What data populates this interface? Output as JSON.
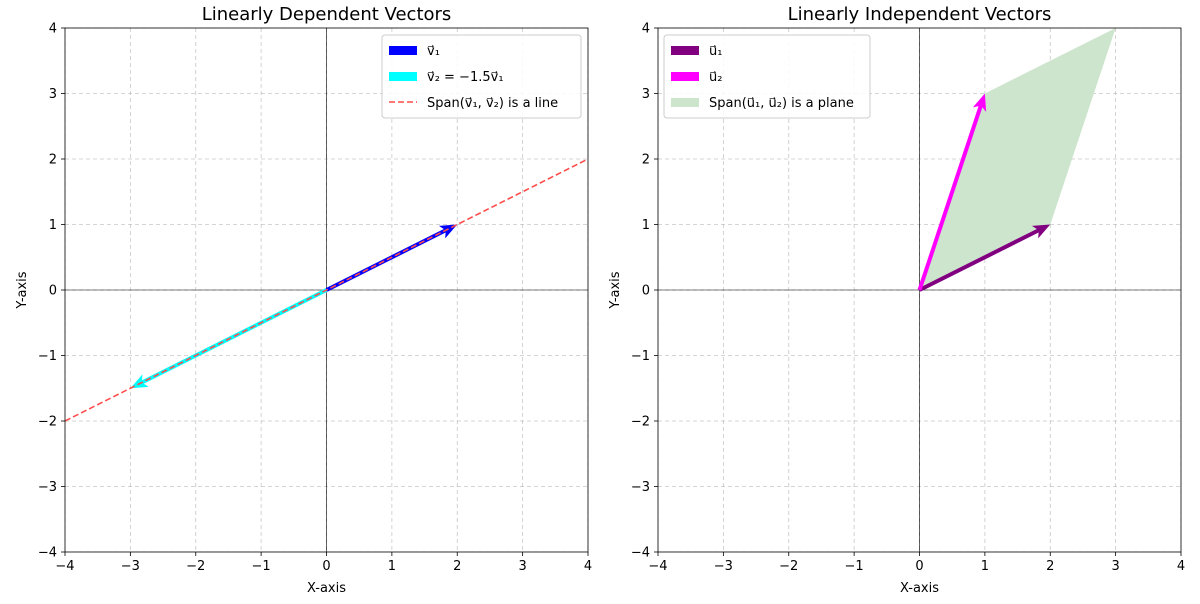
{
  "chart_data": [
    {
      "type": "vector",
      "title": "Linearly Dependent Vectors",
      "xlabel": "X-axis",
      "ylabel": "Y-axis",
      "xlim": [
        -4,
        4
      ],
      "ylim": [
        -4,
        4
      ],
      "ticks": [
        -4,
        -3,
        -2,
        -1,
        0,
        1,
        2,
        3,
        4
      ],
      "tick_labels": [
        "−4",
        "−3",
        "−2",
        "−1",
        "0",
        "1",
        "2",
        "3",
        "4"
      ],
      "grid": true,
      "legend_position": "top-right",
      "vectors": [
        {
          "name": "v⃗₁",
          "x": 2,
          "y": 1,
          "color": "#0000ff"
        },
        {
          "name": "v⃗₂ = −1.5v⃗₁",
          "x": -3,
          "y": -1.5,
          "color": "#00ffff"
        }
      ],
      "lines": [
        {
          "name": "Span(v⃗₁, v⃗₂) is a line",
          "x": [
            -4,
            4
          ],
          "y": [
            -2,
            2
          ],
          "color": "#ff4d4d",
          "style": "dashed"
        }
      ],
      "fills": []
    },
    {
      "type": "vector",
      "title": "Linearly Independent Vectors",
      "xlabel": "X-axis",
      "ylabel": "Y-axis",
      "xlim": [
        -4,
        4
      ],
      "ylim": [
        -4,
        4
      ],
      "ticks": [
        -4,
        -3,
        -2,
        -1,
        0,
        1,
        2,
        3,
        4
      ],
      "tick_labels": [
        "−4",
        "−3",
        "−2",
        "−1",
        "0",
        "1",
        "2",
        "3",
        "4"
      ],
      "grid": true,
      "legend_position": "top-left",
      "fills": [
        {
          "name": "Span(u⃗₁, u⃗₂) is a plane",
          "x": [
            0,
            2,
            3,
            1
          ],
          "y": [
            0,
            1,
            4,
            3
          ],
          "color": "#cde5cd"
        }
      ],
      "vectors": [
        {
          "name": "u⃗₁",
          "x": 2,
          "y": 1,
          "color": "#800080"
        },
        {
          "name": "u⃗₂",
          "x": 1,
          "y": 3,
          "color": "#ff00ff"
        }
      ],
      "lines": []
    }
  ]
}
